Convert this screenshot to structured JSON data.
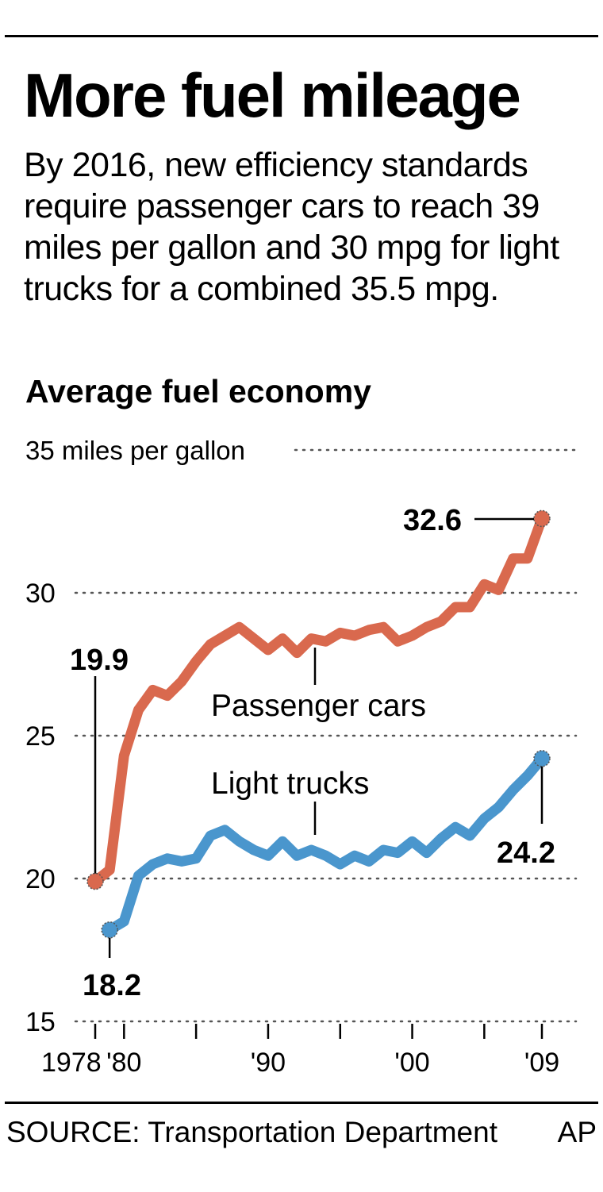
{
  "header": {
    "title": "More fuel mileage",
    "subtitle": "By 2016, new efficiency standards require passenger cars to reach 39 miles per gallon and 30 mpg for light trucks for a combined 35.5 mpg."
  },
  "footer": {
    "source": "SOURCE: Transportation Department",
    "credit": "AP"
  },
  "chart_data": {
    "type": "line",
    "title": "Average fuel economy",
    "ylabel": "35 miles per gallon",
    "ylim": [
      15,
      35
    ],
    "yticks": [
      15,
      20,
      25,
      30,
      35
    ],
    "ytick_labels": [
      "15",
      "20",
      "25",
      "30",
      ""
    ],
    "xlim": [
      1978,
      2009
    ],
    "xticks": [
      1978,
      1980,
      1985,
      1990,
      1995,
      2000,
      2005,
      2009
    ],
    "xtick_labels": [
      {
        "x": 1978,
        "label": "1978"
      },
      {
        "x": 1980,
        "label": "'80"
      },
      {
        "x": 1990,
        "label": "'90"
      },
      {
        "x": 2000,
        "label": "'00"
      },
      {
        "x": 2009,
        "label": "'09"
      }
    ],
    "grid": "horizontal dotted",
    "colors": {
      "passenger_cars": "#d9694e",
      "light_trucks": "#4a96cd"
    },
    "series": [
      {
        "name": "Passenger cars",
        "key": "passenger_cars",
        "x": [
          1978,
          1979,
          1980,
          1981,
          1982,
          1983,
          1984,
          1985,
          1986,
          1987,
          1988,
          1989,
          1990,
          1991,
          1992,
          1993,
          1994,
          1995,
          1996,
          1997,
          1998,
          1999,
          2000,
          2001,
          2002,
          2003,
          2004,
          2005,
          2006,
          2007,
          2008,
          2009
        ],
        "y": [
          19.9,
          20.3,
          24.3,
          25.9,
          26.6,
          26.4,
          26.9,
          27.6,
          28.2,
          28.5,
          28.8,
          28.4,
          28.0,
          28.4,
          27.9,
          28.4,
          28.3,
          28.6,
          28.5,
          28.7,
          28.8,
          28.3,
          28.5,
          28.8,
          29.0,
          29.5,
          29.5,
          30.3,
          30.1,
          31.2,
          31.2,
          32.6
        ]
      },
      {
        "name": "Light trucks",
        "key": "light_trucks",
        "x": [
          1979,
          1980,
          1981,
          1982,
          1983,
          1984,
          1985,
          1986,
          1987,
          1988,
          1989,
          1990,
          1991,
          1992,
          1993,
          1994,
          1995,
          1996,
          1997,
          1998,
          1999,
          2000,
          2001,
          2002,
          2003,
          2004,
          2005,
          2006,
          2007,
          2008,
          2009
        ],
        "y": [
          18.2,
          18.5,
          20.1,
          20.5,
          20.7,
          20.6,
          20.7,
          21.5,
          21.7,
          21.3,
          21.0,
          20.8,
          21.3,
          20.8,
          21.0,
          20.8,
          20.5,
          20.8,
          20.6,
          21.0,
          20.9,
          21.3,
          20.9,
          21.4,
          21.8,
          21.5,
          22.1,
          22.5,
          23.1,
          23.6,
          24.2
        ]
      }
    ],
    "annotations": [
      {
        "series": "passenger_cars",
        "x": 1978,
        "y": 19.9,
        "text": "19.9"
      },
      {
        "series": "passenger_cars",
        "x": 2009,
        "y": 32.6,
        "text": "32.6"
      },
      {
        "series": "light_trucks",
        "x": 1979,
        "y": 18.2,
        "text": "18.2"
      },
      {
        "series": "light_trucks",
        "x": 2009,
        "y": 24.2,
        "text": "24.2"
      }
    ]
  }
}
